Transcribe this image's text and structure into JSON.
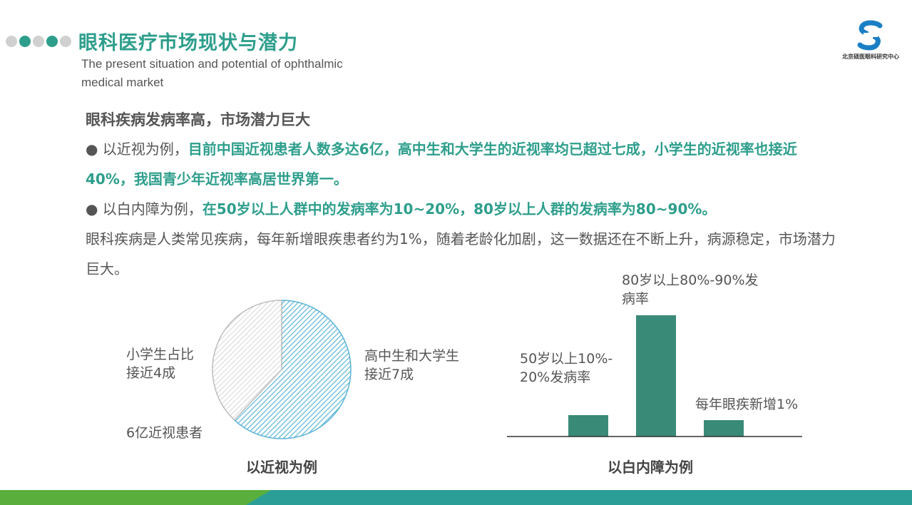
{
  "header": {
    "title": "眼科医疗市场现状与潜力",
    "subtitle_line1": "The present situation and potential of ophthalmic",
    "subtitle_line2": "medical market"
  },
  "logo": {
    "text": "北京硕医眼科研究中心"
  },
  "content": {
    "heading": "眼科疾病发病率高，市场潜力巨大",
    "bullet1_prefix": "● 以近视为例，",
    "bullet1_highlight": "目前中国近视患者人数多达6亿，高中生和大学生的近视率均已超过七成，小学生的近视率也接近40%，我国青少年近视率高居世界第一。",
    "bullet2_prefix": "● 以白内障为例，",
    "bullet2_highlight": "在50岁以上人群中的发病率为10~20%，80岁以上人群的发病率为80~90%。",
    "paragraph": "眼科疾病是人类常见疾病，每年新增眼疾患者约为1%，随着老龄化加剧，这一数据还在不断上升，病源稳定，市场潜力巨大。"
  },
  "colors": {
    "accent": "#2e9e8c",
    "bar": "#3a8a78",
    "pie_blue": "#5ab4d6",
    "pie_gray": "#bdbdbd",
    "footer_green": "#5aaf3c",
    "footer_teal": "#2b9f97"
  },
  "chart_data": [
    {
      "type": "pie",
      "categories": [
        "高中生和大学生接近7成",
        "小学生占比接近4成"
      ],
      "values": [
        0.62,
        0.38
      ],
      "labels": {
        "slice1_line1": "高中生和大学生",
        "slice1_line2": "接近7成",
        "slice2_line1": "小学生占比",
        "slice2_line2": "接近4成",
        "total": "6亿近视患者"
      },
      "caption": "以近视为例"
    },
    {
      "type": "bar",
      "categories": [
        "50岁以上10%-20%发病率",
        "80岁以上80%-90%发病率",
        "每年眼疾新增1%"
      ],
      "values": [
        15,
        85,
        1
      ],
      "labels": {
        "bar1_line1": "50岁以上10%-",
        "bar1_line2": "20%发病率",
        "bar2_line1": "80岁以上80%-90%发",
        "bar2_line2": "病率",
        "bar3": "每年眼疾新增1%"
      },
      "caption": "以白内障为例"
    }
  ]
}
